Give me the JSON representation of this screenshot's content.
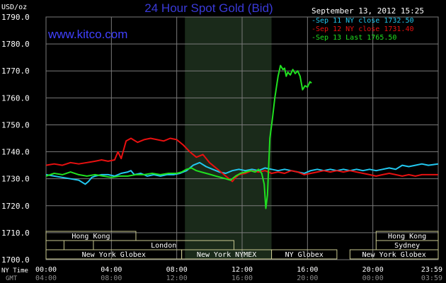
{
  "header": {
    "unit": "USD/oz",
    "title": "24 Hour Spot Gold (Bid)",
    "timestamp": "September 13, 2012 15:25",
    "site": "www.kitco.com"
  },
  "colors": {
    "background": "#000000",
    "grid": "#7a7a7a",
    "title": "#3a3ad8",
    "site": "#4040ff",
    "sep11": "#22c8f0",
    "sep12": "#e81010",
    "sep13": "#20e020",
    "market_box": "#c8c890",
    "nymex_shade": "#1a2a1a"
  },
  "chart_data": {
    "type": "line",
    "ylim": [
      1700,
      1790
    ],
    "y_ticks": [
      "1790.0",
      "1780.0",
      "1770.0",
      "1760.0",
      "1750.0",
      "1740.0",
      "1730.0",
      "1720.0",
      "1710.0",
      "1700.0"
    ],
    "xlim": [
      0,
      24
    ],
    "x_ticks_ny": [
      "00:00",
      "04:00",
      "08:00",
      "12:00",
      "16:00",
      "20:00",
      "23:59"
    ],
    "x_ticks_gmt": [
      "04:00",
      "08:00",
      "12:00",
      "16:00",
      "20:00",
      "00:00",
      "03:59"
    ],
    "x_axis_labels": [
      "NY Time",
      "GMT"
    ],
    "legend_position": "top-right",
    "series": [
      {
        "name": "Sep 11 NY close 1732.50",
        "color_key": "sep11",
        "x": [
          0,
          0.5,
          1,
          1.5,
          2,
          2.4,
          2.6,
          2.8,
          3,
          3.4,
          3.8,
          4.2,
          4.6,
          5,
          5.2,
          5.4,
          5.8,
          6.2,
          6.6,
          7,
          7.4,
          7.8,
          8.2,
          8.6,
          9,
          9.4,
          9.8,
          10.2,
          10.6,
          11,
          11.4,
          11.8,
          12.2,
          12.6,
          13,
          13.4,
          13.8,
          14.2,
          14.6,
          15,
          15.4,
          15.8,
          16.2,
          16.6,
          17,
          17.4,
          17.8,
          18.2,
          18.6,
          19,
          19.4,
          19.8,
          20.2,
          20.6,
          21,
          21.4,
          21.8,
          22.2,
          22.6,
          23,
          23.4,
          23.99
        ],
        "y": [
          1731.5,
          1731.0,
          1730.5,
          1730.0,
          1729.5,
          1728.0,
          1729.0,
          1730.5,
          1731.0,
          1731.5,
          1731.5,
          1731.0,
          1732.0,
          1732.5,
          1733.0,
          1731.5,
          1732.0,
          1731.0,
          1731.5,
          1731.0,
          1731.5,
          1731.5,
          1732.0,
          1733.0,
          1735.0,
          1736.0,
          1734.5,
          1733.5,
          1732.5,
          1732.0,
          1733.0,
          1733.5,
          1733.0,
          1733.5,
          1733.0,
          1734.0,
          1733.5,
          1733.0,
          1733.5,
          1733.0,
          1732.5,
          1732.0,
          1733.0,
          1733.5,
          1733.0,
          1733.5,
          1733.0,
          1733.5,
          1733.0,
          1733.5,
          1733.0,
          1733.5,
          1733.0,
          1733.5,
          1734.0,
          1733.5,
          1735.0,
          1734.5,
          1735.0,
          1735.5,
          1735.0,
          1735.5
        ]
      },
      {
        "name": "Sep 12 NY close 1731.40",
        "color_key": "sep12",
        "x": [
          0,
          0.5,
          1,
          1.5,
          2,
          2.5,
          3,
          3.4,
          3.8,
          4.2,
          4.4,
          4.6,
          4.9,
          5.2,
          5.6,
          6,
          6.4,
          6.8,
          7.2,
          7.6,
          8,
          8.4,
          8.8,
          9.2,
          9.6,
          10,
          10.4,
          10.8,
          11.2,
          11.4,
          11.6,
          11.8,
          12.2,
          12.6,
          13,
          13.4,
          13.8,
          14.2,
          14.6,
          15,
          15.4,
          15.8,
          16.2,
          16.6,
          17,
          17.4,
          17.8,
          18.2,
          18.6,
          19,
          19.4,
          19.8,
          20.2,
          20.6,
          21,
          21.4,
          21.8,
          22.2,
          22.6,
          23,
          23.4,
          23.99
        ],
        "y": [
          1735.0,
          1735.5,
          1735.0,
          1736.0,
          1735.5,
          1736.0,
          1736.5,
          1737.0,
          1736.5,
          1737.0,
          1740.0,
          1737.5,
          1744.0,
          1745.0,
          1743.5,
          1744.5,
          1745.0,
          1744.5,
          1744.0,
          1745.0,
          1744.5,
          1742.5,
          1740.0,
          1738.0,
          1739.0,
          1736.0,
          1734.0,
          1732.0,
          1730.0,
          1729.0,
          1730.5,
          1731.5,
          1732.0,
          1733.0,
          1732.5,
          1733.0,
          1732.0,
          1732.5,
          1732.0,
          1733.0,
          1732.5,
          1731.5,
          1732.0,
          1732.5,
          1733.0,
          1732.5,
          1733.0,
          1732.5,
          1733.0,
          1732.5,
          1732.0,
          1731.5,
          1731.0,
          1731.5,
          1732.0,
          1731.5,
          1731.0,
          1731.5,
          1731.0,
          1731.5,
          1731.5,
          1731.5
        ]
      },
      {
        "name": "Sep 13 Last 1765.50",
        "color_key": "sep13",
        "x": [
          0,
          0.5,
          1,
          1.5,
          2,
          2.5,
          3,
          3.5,
          4,
          4.5,
          5,
          5.5,
          6,
          6.5,
          7,
          7.5,
          8,
          8.3,
          8.6,
          8.9,
          9.2,
          9.5,
          9.8,
          10.1,
          10.4,
          10.7,
          11,
          11.3,
          11.6,
          11.9,
          12.2,
          12.5,
          12.8,
          13,
          13.2,
          13.35,
          13.45,
          13.55,
          13.7,
          13.85,
          14,
          14.2,
          14.35,
          14.5,
          14.6,
          14.7,
          14.8,
          14.95,
          15.1,
          15.25,
          15.4,
          15.55,
          15.7,
          15.85,
          16.0,
          16.15,
          16.25
        ],
        "y": [
          1731.0,
          1732.0,
          1731.5,
          1732.5,
          1731.5,
          1731.0,
          1731.5,
          1731.0,
          1730.5,
          1731.0,
          1731.0,
          1731.5,
          1731.5,
          1732.0,
          1731.5,
          1732.0,
          1732.0,
          1732.5,
          1733.5,
          1734.0,
          1733.0,
          1732.5,
          1732.0,
          1731.5,
          1731.0,
          1730.5,
          1730.0,
          1729.5,
          1731.0,
          1732.0,
          1732.5,
          1733.0,
          1732.5,
          1733.5,
          1732.0,
          1728.0,
          1719.0,
          1724.0,
          1745.0,
          1752.0,
          1760.0,
          1768.0,
          1772.0,
          1770.5,
          1771.0,
          1768.0,
          1769.5,
          1768.5,
          1770.5,
          1769.0,
          1770.0,
          1768.0,
          1763.0,
          1764.5,
          1764.0,
          1766.0,
          1765.5
        ]
      }
    ],
    "nymex_shade": [
      8.5,
      13.8
    ]
  },
  "markets": {
    "rows": [
      [
        {
          "label": "Hong Kong",
          "start": 0,
          "end": 5.5
        },
        {
          "label": "Hong Kong",
          "start": 20.2,
          "end": 24
        }
      ],
      [
        {
          "label": "London",
          "start": 0,
          "end": 1.1,
          "empty": true
        },
        {
          "label": "London",
          "start": 2.9,
          "end": 11.5
        },
        {
          "label": "Sydney",
          "start": 20.2,
          "end": 24
        }
      ],
      [
        {
          "label": "New York Globex",
          "start": 0,
          "end": 8.3
        },
        {
          "label": "New York NYMEX",
          "start": 8.3,
          "end": 13.8
        },
        {
          "label": "NY Globex",
          "start": 13.8,
          "end": 17.8
        },
        {
          "label": "New York Globex",
          "start": 18.6,
          "end": 24
        }
      ]
    ]
  }
}
